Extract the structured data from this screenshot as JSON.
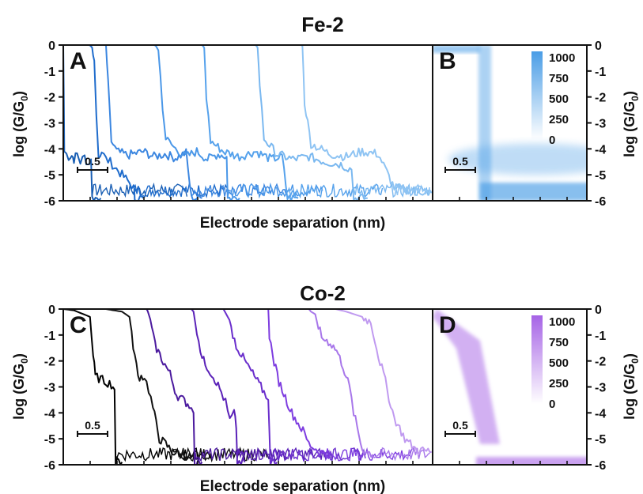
{
  "chart_data": [
    {
      "type": "line",
      "panel_label": "A",
      "title": "Fe-2",
      "xlabel": "Electrode separation (nm)",
      "ylabel": "log (G/G0)",
      "ylim": [
        -6,
        0
      ],
      "y_ticks": [
        "0",
        "-1",
        "-2",
        "-3",
        "-4",
        "-5",
        "-6"
      ],
      "scale_bar_label": "0.5",
      "scale_bar_length_nm": 0.5,
      "xlim_nm": [
        0,
        3.45
      ],
      "grid": false,
      "series": [
        {
          "color": "#1a5fb4",
          "x": [
            0,
            0.01,
            0.05,
            0.08,
            0.1,
            0.13,
            0.16,
            0.2,
            0.23,
            0.26,
            0.27,
            0.35
          ],
          "y": [
            0.05,
            -4.1,
            -4.3,
            -4.25,
            -4.4,
            -4.2,
            -4.5,
            -4.3,
            -4.6,
            -4.4,
            -5.9,
            -5.9
          ]
        },
        {
          "color": "#1f6ccc",
          "x": [
            0.24,
            0.27,
            0.29,
            0.31,
            0.33,
            0.36,
            0.4,
            0.44,
            0.48,
            0.55,
            0.62,
            0.66,
            0.67,
            0.75
          ],
          "y": [
            0.05,
            -0.1,
            -0.6,
            -2.7,
            -4.3,
            -4.1,
            -4.4,
            -4.5,
            -4.7,
            -5.0,
            -5.3,
            -5.5,
            -5.9,
            -5.9
          ]
        },
        {
          "color": "#3b86e0",
          "x": [
            0.4,
            0.42,
            0.45,
            0.5,
            0.6,
            0.75,
            0.85,
            0.95,
            1.05,
            1.15,
            1.2,
            1.3
          ],
          "y": [
            0.05,
            -1.5,
            -3.7,
            -4.1,
            -4.25,
            -4.1,
            -4.3,
            -4.2,
            -4.35,
            -4.15,
            -5.9,
            -5.9
          ]
        },
        {
          "color": "#4a97e8",
          "x": [
            0.85,
            0.87,
            0.89,
            0.91,
            0.93,
            0.96,
            1.05,
            1.15,
            1.25,
            1.35,
            1.45,
            1.53,
            1.54,
            1.65
          ],
          "y": [
            0.02,
            -0.05,
            -0.2,
            -1.2,
            -2.5,
            -3.6,
            -4.0,
            -4.3,
            -4.1,
            -4.4,
            -4.2,
            -4.3,
            -5.9,
            -5.9
          ]
        },
        {
          "color": "#56a2ec",
          "x": [
            1.3,
            1.32,
            1.34,
            1.38,
            1.5,
            1.65,
            1.8,
            1.95,
            2.05,
            2.1,
            2.2
          ],
          "y": [
            0.0,
            -0.1,
            -2.0,
            -3.7,
            -4.1,
            -4.3,
            -4.1,
            -4.4,
            -4.3,
            -5.9,
            -5.9
          ]
        },
        {
          "color": "#7ab8f0",
          "x": [
            1.8,
            1.82,
            1.84,
            1.88,
            2.0,
            2.15,
            2.3,
            2.45,
            2.6,
            2.7,
            2.72,
            2.85
          ],
          "y": [
            0.02,
            -0.1,
            -1.5,
            -3.6,
            -4.2,
            -4.4,
            -4.3,
            -4.5,
            -4.6,
            -4.8,
            -5.9,
            -5.9
          ]
        },
        {
          "color": "#8fc4f3",
          "x": [
            2.22,
            2.24,
            2.26,
            2.32,
            2.5,
            2.65,
            2.8,
            2.95,
            3.1,
            3.3,
            3.45
          ],
          "y": [
            0.05,
            -0.05,
            -2.2,
            -3.8,
            -4.2,
            -4.3,
            -4.1,
            -4.2,
            -5.5,
            -5.6,
            -5.7
          ]
        }
      ]
    },
    {
      "type": "heatmap",
      "panel_label": "B",
      "ylabel": "log (G/G0)",
      "ylim": [
        -6,
        0
      ],
      "y_ticks": [
        "0",
        "-1",
        "-2",
        "-3",
        "-4",
        "-5",
        "-6"
      ],
      "scale_bar_label": "0.5",
      "colorbar": {
        "labels": [
          "1000",
          "750",
          "500",
          "250",
          "0"
        ],
        "min": 0,
        "max": 1000,
        "color": "#4a9de6"
      },
      "features": [
        {
          "x_nm": 0.34,
          "description_y": "vertical drop from 0 to -4"
        },
        {
          "y_range": [
            -4.7,
            -4.0
          ],
          "level": "plateau"
        },
        {
          "y_range": [
            -6.0,
            -5.2
          ],
          "level": "noise floor"
        }
      ]
    },
    {
      "type": "line",
      "panel_label": "C",
      "title": "Co-2",
      "xlabel": "Electrode separation (nm)",
      "ylabel": "log (G/G0)",
      "ylim": [
        -6,
        0
      ],
      "y_ticks": [
        "0",
        "-1",
        "-2",
        "-3",
        "-4",
        "-5",
        "-6"
      ],
      "scale_bar_label": "0.5",
      "scale_bar_length_nm": 0.5,
      "xlim_nm": [
        0,
        3.45
      ],
      "grid": false,
      "series": [
        {
          "color": "#000000",
          "x": [
            0,
            0.1,
            0.25,
            0.28,
            0.3,
            0.35,
            0.4,
            0.45,
            0.48,
            0.49,
            0.55
          ],
          "y": [
            0.0,
            -0.05,
            -0.3,
            -1.8,
            -2.6,
            -2.7,
            -2.8,
            -2.9,
            -3.1,
            -5.9,
            -5.9
          ]
        },
        {
          "color": "#111111",
          "x": [
            0.4,
            0.55,
            0.62,
            0.64,
            0.7,
            0.76,
            0.8,
            0.84,
            0.9,
            0.96,
            1.02,
            1.1,
            1.2,
            1.25
          ],
          "y": [
            0.0,
            -0.1,
            -0.3,
            -1.0,
            -2.6,
            -2.6,
            -3.1,
            -3.8,
            -5.0,
            -5.2,
            -5.5,
            -5.6,
            -5.7,
            -5.8
          ]
        },
        {
          "color": "#4b1a9e",
          "x": [
            0.78,
            0.8,
            0.86,
            0.92,
            1.0,
            1.06,
            1.12,
            1.18,
            1.22,
            1.23,
            1.3
          ],
          "y": [
            0.05,
            -0.2,
            -1.4,
            -1.9,
            -2.5,
            -3.3,
            -3.5,
            -3.7,
            -4.0,
            -5.9,
            -5.9
          ]
        },
        {
          "color": "#5b22b8",
          "x": [
            1.2,
            1.22,
            1.3,
            1.36,
            1.42,
            1.48,
            1.52,
            1.56,
            1.6,
            1.62,
            1.63,
            1.7
          ],
          "y": [
            0.0,
            -0.1,
            -1.9,
            -2.3,
            -2.7,
            -3.2,
            -3.6,
            -4.3,
            -4.0,
            -4.6,
            -5.9,
            -5.9
          ]
        },
        {
          "color": "#6a2ecc",
          "x": [
            1.5,
            1.54,
            1.62,
            1.7,
            1.76,
            1.82,
            1.88,
            1.92,
            1.94,
            2.0
          ],
          "y": [
            0.0,
            -0.3,
            -1.4,
            -2.0,
            -2.4,
            -2.8,
            -3.2,
            -3.5,
            -5.9,
            -5.9
          ]
        },
        {
          "color": "#7e3de0",
          "x": [
            1.92,
            1.93,
            1.96,
            2.02,
            2.08,
            2.14,
            2.2,
            2.26,
            2.3,
            2.4,
            2.5
          ],
          "y": [
            0.05,
            -1.0,
            -1.8,
            -2.8,
            -3.4,
            -4.0,
            -4.4,
            -4.8,
            -5.2,
            -5.5,
            -5.6
          ]
        },
        {
          "color": "#a877ea",
          "x": [
            2.3,
            2.32,
            2.36,
            2.42,
            2.5,
            2.56,
            2.62,
            2.68,
            2.72,
            2.8,
            2.9
          ],
          "y": [
            0.0,
            -0.1,
            -0.2,
            -1.1,
            -1.3,
            -1.6,
            -2.2,
            -3.0,
            -4.0,
            -5.4,
            -5.6
          ]
        },
        {
          "color": "#c09af0",
          "x": [
            2.55,
            2.65,
            2.8,
            2.88,
            2.92,
            2.95,
            3.0,
            3.05,
            3.1,
            3.2,
            3.3,
            3.45
          ],
          "y": [
            0.0,
            -0.1,
            -0.3,
            -0.5,
            -1.2,
            -1.8,
            -2.5,
            -3.4,
            -4.2,
            -5.0,
            -5.4,
            -5.5
          ]
        }
      ]
    },
    {
      "type": "heatmap",
      "panel_label": "D",
      "ylabel": "log (G/G0)",
      "ylim": [
        -6,
        0
      ],
      "y_ticks": [
        "0",
        "-1",
        "-2",
        "-3",
        "-4",
        "-5",
        "-6"
      ],
      "scale_bar_label": "0.5",
      "colorbar": {
        "labels": [
          "1000",
          "750",
          "500",
          "250",
          "0"
        ],
        "min": 0,
        "max": 1000,
        "color": "#a663e6"
      },
      "features": [
        {
          "x_range_nm": [
            0.0,
            0.6
          ],
          "description_y": "gradual decline from 0 to -5.3"
        },
        {
          "y_range": [
            -5.7,
            -5.2
          ],
          "level": "noise floor"
        }
      ]
    }
  ],
  "fig": {
    "top_title": "Fe-2",
    "bottom_title": "Co-2",
    "xlabel_top": "Electrode separation (nm)",
    "xlabel_bottom": "Electrode separation (nm)",
    "ylabel_main": "log (G/G",
    "ylabel_sub": "0",
    "ylabel_close": ")"
  }
}
